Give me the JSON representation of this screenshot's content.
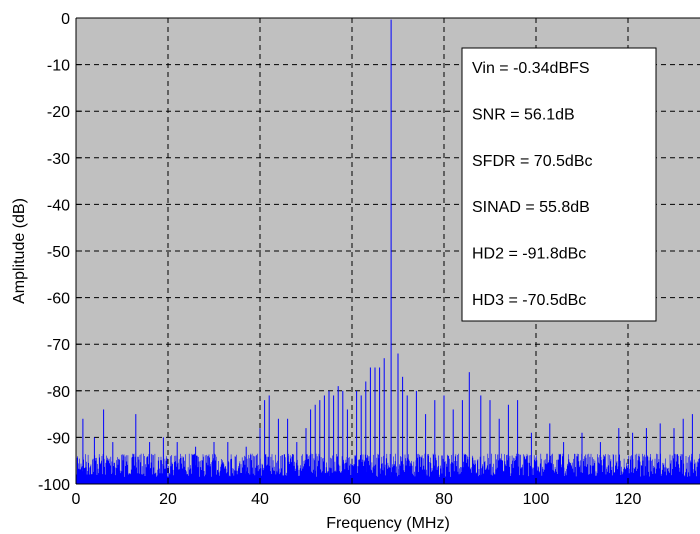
{
  "chart_data": {
    "type": "line",
    "title": "",
    "xlabel": "Frequency (MHz)",
    "ylabel": "Amplitude (dB)",
    "xlim": [
      0,
      138
    ],
    "ylim": [
      -100,
      0
    ],
    "xticks": [
      "0",
      "20",
      "40",
      "60",
      "80",
      "100",
      "120"
    ],
    "yticks": [
      "0",
      "-10",
      "-20",
      "-30",
      "-40",
      "-50",
      "-60",
      "-70",
      "-80",
      "-90",
      "-100"
    ],
    "grid": true,
    "legend_position": "top-right",
    "annotations": [
      "Vin = -0.34dBFS",
      "SNR = 56.1dB",
      "SFDR = 70.5dBc",
      "SINAD = 55.8dB",
      "HD2 = -91.8dBc",
      "HD3 = -70.5dBc"
    ],
    "series": [
      {
        "color": "#0000ff",
        "noise_floor_db": [
          -100,
          -93
        ],
        "fundamental": {
          "x": 68.5,
          "y": -0.34
        },
        "spurs": [
          {
            "x": 1.5,
            "y": -86
          },
          {
            "x": 4,
            "y": -90
          },
          {
            "x": 6,
            "y": -84
          },
          {
            "x": 8,
            "y": -91
          },
          {
            "x": 13,
            "y": -85
          },
          {
            "x": 16,
            "y": -91
          },
          {
            "x": 19,
            "y": -90
          },
          {
            "x": 22,
            "y": -91
          },
          {
            "x": 26,
            "y": -92
          },
          {
            "x": 30,
            "y": -91
          },
          {
            "x": 33,
            "y": -91
          },
          {
            "x": 37,
            "y": -92
          },
          {
            "x": 40,
            "y": -88
          },
          {
            "x": 41,
            "y": -82
          },
          {
            "x": 42,
            "y": -81
          },
          {
            "x": 44,
            "y": -86
          },
          {
            "x": 46,
            "y": -86
          },
          {
            "x": 48,
            "y": -91
          },
          {
            "x": 50,
            "y": -88
          },
          {
            "x": 51,
            "y": -84
          },
          {
            "x": 52,
            "y": -83
          },
          {
            "x": 53,
            "y": -82
          },
          {
            "x": 54,
            "y": -81
          },
          {
            "x": 55,
            "y": -80
          },
          {
            "x": 56,
            "y": -81
          },
          {
            "x": 57,
            "y": -79
          },
          {
            "x": 58,
            "y": -80
          },
          {
            "x": 59,
            "y": -84
          },
          {
            "x": 61,
            "y": -80
          },
          {
            "x": 62,
            "y": -81
          },
          {
            "x": 63,
            "y": -78
          },
          {
            "x": 64,
            "y": -75
          },
          {
            "x": 65,
            "y": -75
          },
          {
            "x": 66,
            "y": -75
          },
          {
            "x": 67,
            "y": -73
          },
          {
            "x": 70,
            "y": -72
          },
          {
            "x": 71,
            "y": -77
          },
          {
            "x": 72,
            "y": -81
          },
          {
            "x": 74,
            "y": -80
          },
          {
            "x": 76,
            "y": -85
          },
          {
            "x": 78,
            "y": -82
          },
          {
            "x": 80,
            "y": -81
          },
          {
            "x": 82,
            "y": -84
          },
          {
            "x": 84,
            "y": -82
          },
          {
            "x": 85.5,
            "y": -76
          },
          {
            "x": 88,
            "y": -81
          },
          {
            "x": 90,
            "y": -82
          },
          {
            "x": 92,
            "y": -86
          },
          {
            "x": 94,
            "y": -83
          },
          {
            "x": 96,
            "y": -82
          },
          {
            "x": 99,
            "y": -89
          },
          {
            "x": 103,
            "y": -87
          },
          {
            "x": 106,
            "y": -91
          },
          {
            "x": 110,
            "y": -89
          },
          {
            "x": 114,
            "y": -91
          },
          {
            "x": 118,
            "y": -88
          },
          {
            "x": 121,
            "y": -89
          },
          {
            "x": 124,
            "y": -88
          },
          {
            "x": 127,
            "y": -87
          },
          {
            "x": 130,
            "y": -88
          },
          {
            "x": 132,
            "y": -86
          },
          {
            "x": 134,
            "y": -85
          },
          {
            "x": 137,
            "y": -89
          }
        ]
      }
    ]
  }
}
